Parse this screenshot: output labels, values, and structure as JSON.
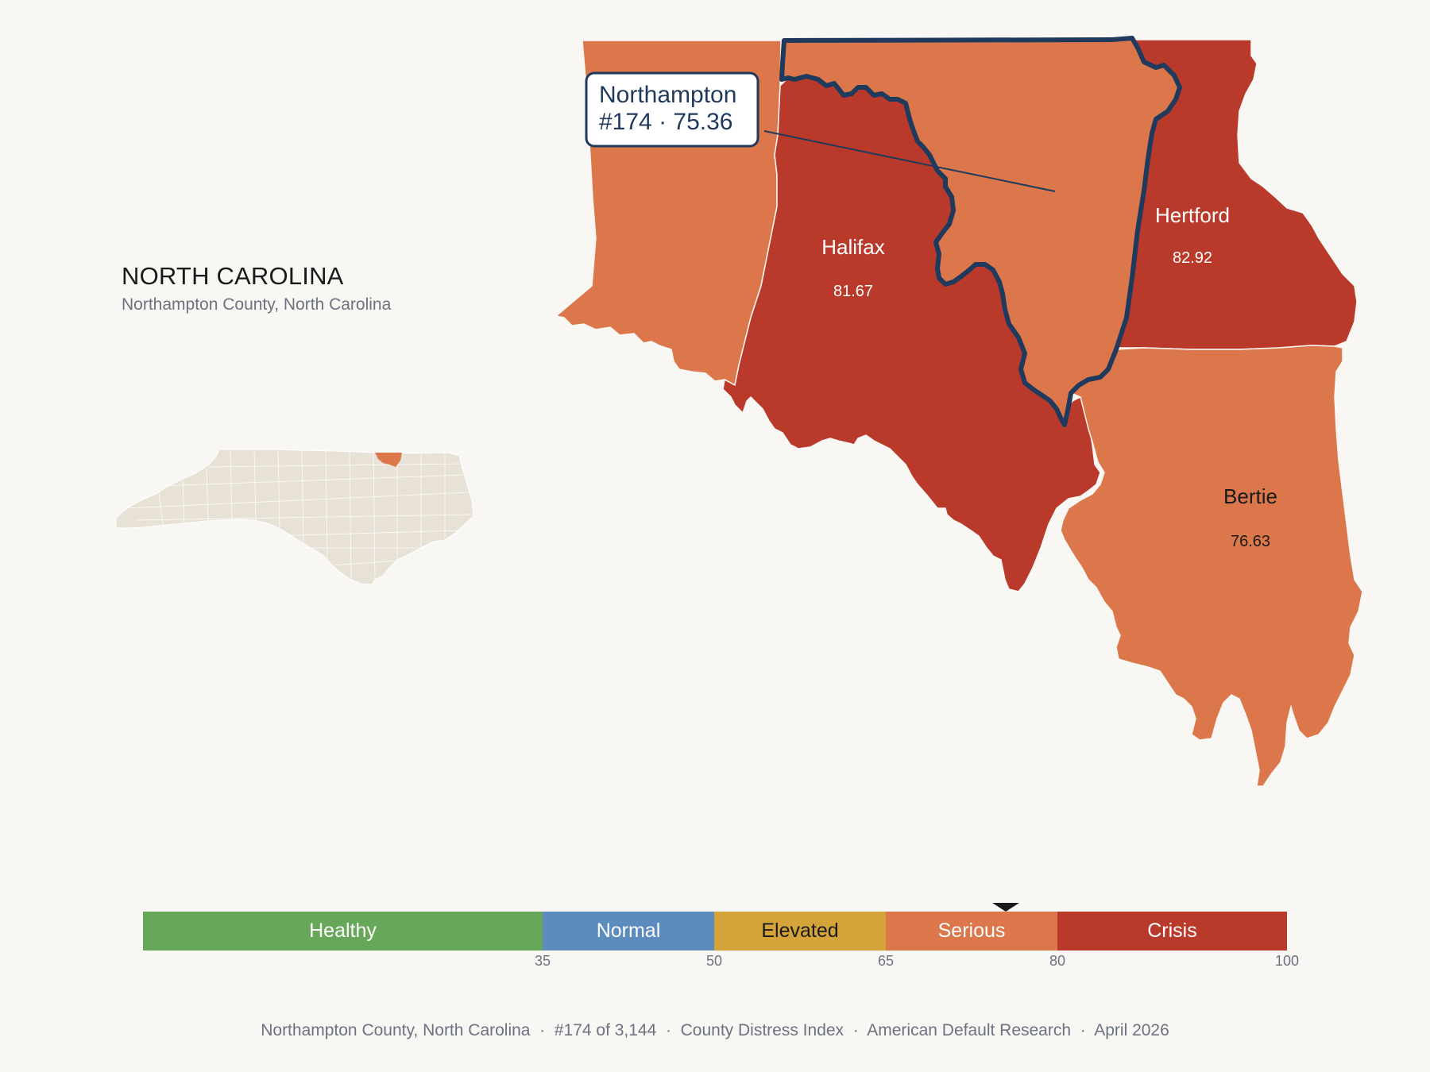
{
  "header": {
    "state_name": "NORTH CAROLINA",
    "subtitle": "Northampton County, North Carolina"
  },
  "callout": {
    "county": "Northampton",
    "rank_score": "#174 · 75.36"
  },
  "counties": [
    {
      "name": "Northampton",
      "score": 75.36,
      "category": "Serious",
      "focus": true
    },
    {
      "name": "Halifax",
      "score_label": "81.67",
      "category": "Crisis"
    },
    {
      "name": "Hertford",
      "score_label": "82.92",
      "category": "Crisis"
    },
    {
      "name": "Bertie",
      "score_label": "76.63",
      "category": "Serious"
    },
    {
      "name": "",
      "category": "Serious"
    }
  ],
  "scale": {
    "marker_value": 75.36,
    "segments": [
      {
        "label": "Healthy",
        "from": 0,
        "to": 35,
        "color": "#67a75a"
      },
      {
        "label": "Normal",
        "from": 35,
        "to": 50,
        "color": "#5c8bbd"
      },
      {
        "label": "Elevated",
        "from": 50,
        "to": 65,
        "color": "#d4a33a"
      },
      {
        "label": "Serious",
        "from": 65,
        "to": 80,
        "color": "#db774a"
      },
      {
        "label": "Crisis",
        "from": 80,
        "to": 100,
        "color": "#b93a2b"
      }
    ],
    "ticks": [
      "35",
      "50",
      "65",
      "80",
      "100"
    ]
  },
  "colors": {
    "serious": "#db774a",
    "crisis": "#b93a2b",
    "focus_outline": "#1f3a5c",
    "inset_fill": "#e7e1d6",
    "background": "#f9f7f4"
  },
  "footer": {
    "county": "Northampton County, North Carolina",
    "rank": "#174 of 3,144",
    "index": "County Distress Index",
    "publisher": "American Default Research",
    "date": "April 2026"
  }
}
